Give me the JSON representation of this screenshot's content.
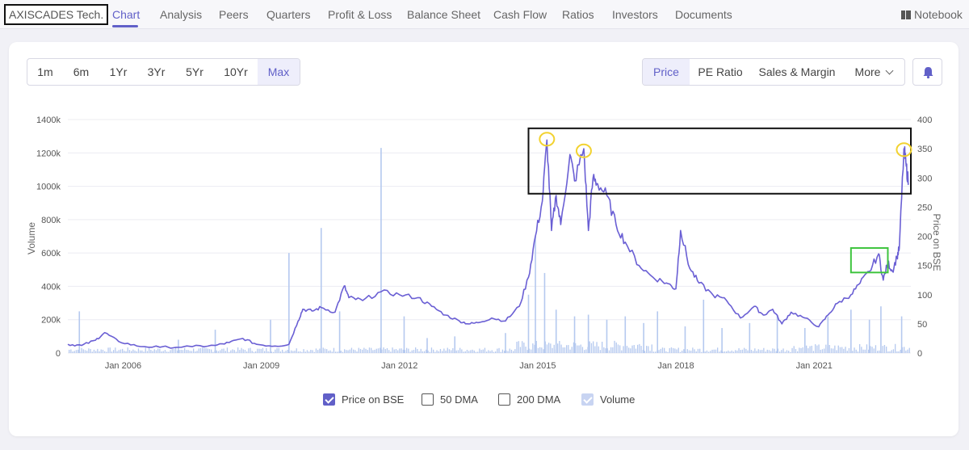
{
  "company": {
    "name": "AXISCADES Tech."
  },
  "nav": {
    "tabs": [
      "Chart",
      "Analysis",
      "Peers",
      "Quarters",
      "Profit & Loss",
      "Balance Sheet",
      "Cash Flow",
      "Ratios",
      "Investors",
      "Documents"
    ],
    "active_tab": "Chart",
    "notebook_label": "Notebook"
  },
  "ranges": {
    "items": [
      "1m",
      "6m",
      "1Yr",
      "3Yr",
      "5Yr",
      "10Yr",
      "Max"
    ],
    "active": "Max"
  },
  "metrics": {
    "items": [
      "Price",
      "PE Ratio",
      "Sales & Margin"
    ],
    "active": "Price",
    "more_label": "More"
  },
  "icons": {
    "alert": "bell-icon",
    "notebook": "book-icon",
    "more": "chevron-down-icon"
  },
  "colors": {
    "accent": "#6160c8",
    "price_line": "#6a5fd4",
    "volume_bar": "#b5c9ef",
    "highlight_black": "#111111",
    "highlight_yellow": "#f2d230",
    "highlight_green": "#3ec43e"
  },
  "legend": {
    "items": [
      {
        "label": "Price on BSE",
        "checked": true
      },
      {
        "label": "50 DMA",
        "checked": false
      },
      {
        "label": "200 DMA",
        "checked": false
      },
      {
        "label": "Volume",
        "checked": true
      }
    ]
  },
  "chart_data": {
    "type": "line",
    "title": "",
    "xlabel": "",
    "y_left_label": "Volume",
    "y_right_label": "Price on BSE",
    "x_ticks": [
      "Jan 2006",
      "Jan 2009",
      "Jan 2012",
      "Jan 2015",
      "Jan 2018",
      "Jan 2021"
    ],
    "y_left_ticks": [
      "0",
      "200k",
      "400k",
      "600k",
      "800k",
      "1000k",
      "1200k",
      "1400k"
    ],
    "y_right_ticks": [
      "0",
      "50",
      "100",
      "150",
      "200",
      "250",
      "300",
      "350",
      "400"
    ],
    "x_range": [
      2004.8,
      2023.1
    ],
    "y_left_range": [
      0,
      1400000
    ],
    "y_right_range": [
      0,
      400
    ],
    "grid": true,
    "legend_position": "bottom",
    "price_series": {
      "name": "Price on BSE",
      "x": [
        2004.8,
        2005.1,
        2005.4,
        2005.6,
        2005.9,
        2006.3,
        2006.8,
        2007.5,
        2008.0,
        2008.3,
        2008.6,
        2008.9,
        2009.3,
        2009.6,
        2009.8,
        2009.9,
        2010.1,
        2010.3,
        2010.6,
        2010.8,
        2010.9,
        2011.2,
        2011.6,
        2012.0,
        2012.4,
        2012.7,
        2013.0,
        2013.3,
        2013.5,
        2013.7,
        2014.0,
        2014.3,
        2014.6,
        2014.8,
        2014.95,
        2015.1,
        2015.2,
        2015.3,
        2015.4,
        2015.5,
        2015.7,
        2015.8,
        2016.0,
        2016.1,
        2016.2,
        2016.3,
        2016.5,
        2016.7,
        2016.9,
        2017.2,
        2017.5,
        2017.8,
        2018.0,
        2018.1,
        2018.3,
        2018.5,
        2018.8,
        2019.1,
        2019.4,
        2019.7,
        2019.9,
        2020.1,
        2020.3,
        2020.5,
        2020.8,
        2021.1,
        2021.3,
        2021.5,
        2021.8,
        2022.0,
        2022.2,
        2022.4,
        2022.5,
        2022.6,
        2022.7,
        2022.8,
        2022.85,
        2022.95,
        2023.0,
        2023.05
      ],
      "y": [
        15,
        13,
        22,
        35,
        20,
        12,
        10,
        11,
        13,
        18,
        25,
        15,
        12,
        15,
        55,
        75,
        72,
        78,
        70,
        115,
        95,
        90,
        105,
        100,
        95,
        80,
        65,
        55,
        50,
        52,
        60,
        55,
        80,
        130,
        200,
        260,
        365,
        210,
        270,
        220,
        340,
        295,
        350,
        210,
        300,
        290,
        270,
        220,
        190,
        150,
        130,
        120,
        110,
        210,
        145,
        120,
        100,
        90,
        60,
        80,
        65,
        75,
        50,
        70,
        60,
        45,
        65,
        85,
        100,
        120,
        140,
        170,
        125,
        155,
        140,
        165,
        180,
        350,
        320,
        290
      ]
    },
    "volume_series": {
      "name": "Volume",
      "x": [
        2005.05,
        2007.2,
        2008.0,
        2009.2,
        2009.6,
        2010.3,
        2010.7,
        2011.6,
        2012.1,
        2012.6,
        2013.2,
        2014.3,
        2014.8,
        2014.95,
        2015.15,
        2015.4,
        2015.8,
        2016.1,
        2016.5,
        2016.9,
        2017.3,
        2017.6,
        2018.2,
        2018.6,
        2019.0,
        2019.6,
        2020.2,
        2020.8,
        2021.3,
        2021.8,
        2022.2,
        2022.45,
        2022.9
      ],
      "y": [
        250000,
        80000,
        140000,
        200000,
        600000,
        750000,
        250000,
        1230000,
        220000,
        90000,
        100000,
        120000,
        350000,
        700000,
        480000,
        260000,
        220000,
        230000,
        200000,
        220000,
        180000,
        250000,
        160000,
        320000,
        150000,
        180000,
        230000,
        150000,
        220000,
        260000,
        200000,
        280000,
        220000
      ]
    },
    "volume_baseline": 20000,
    "annotations": [
      {
        "type": "rectangle",
        "color": "black",
        "x_range": [
          2014.8,
          2023.1
        ],
        "y_range": [
          273,
          385
        ]
      },
      {
        "type": "rectangle",
        "color": "green",
        "x_range": [
          2021.8,
          2022.6
        ],
        "y_range": [
          138,
          180
        ]
      },
      {
        "type": "circle",
        "color": "yellow",
        "x": 2015.2,
        "y": 365
      },
      {
        "type": "circle",
        "color": "yellow",
        "x": 2016.0,
        "y": 345
      },
      {
        "type": "circle",
        "color": "yellow",
        "x": 2022.95,
        "y": 347
      }
    ]
  }
}
